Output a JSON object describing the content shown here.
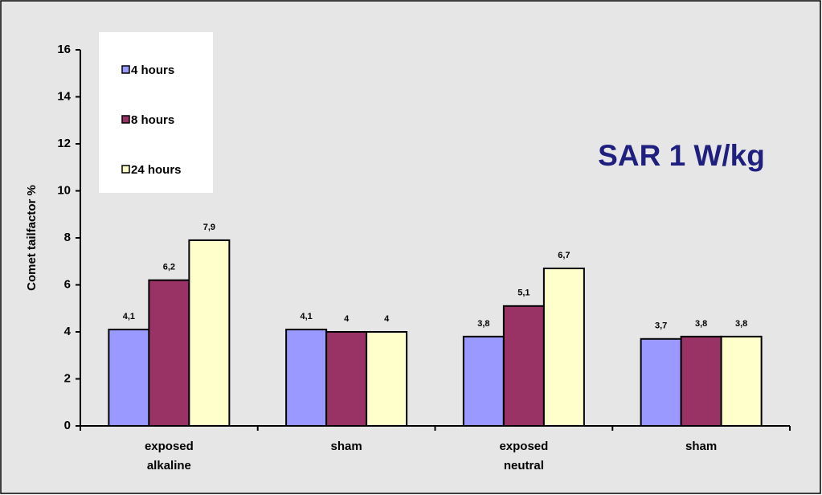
{
  "chart_data": {
    "type": "bar",
    "annotation": "SAR 1 W/kg",
    "y_label": "Comet tailfactor %",
    "categories": [
      "exposed alkaline",
      "sham",
      "exposed neutral",
      "sham"
    ],
    "series": [
      {
        "name": "4 hours",
        "color": "#9999ff",
        "values": [
          4.1,
          4.1,
          3.8,
          3.7
        ],
        "value_labels": [
          "4,1",
          "4,1",
          "3,8",
          "3,7"
        ]
      },
      {
        "name": "8 hours",
        "color": "#993366",
        "values": [
          6.2,
          4,
          5.1,
          3.8
        ],
        "value_labels": [
          "6,2",
          "4",
          "5,1",
          "3,8"
        ]
      },
      {
        "name": "24 hours",
        "color": "#ffffcc",
        "values": [
          7.9,
          4,
          6.7,
          3.8
        ],
        "value_labels": [
          "7,9",
          "4",
          "6,7",
          "3,8"
        ]
      }
    ],
    "ylim": [
      0,
      16
    ],
    "yticks": [
      0,
      2,
      4,
      6,
      8,
      10,
      12,
      14,
      16
    ],
    "grid": false,
    "legend": "upper left"
  }
}
